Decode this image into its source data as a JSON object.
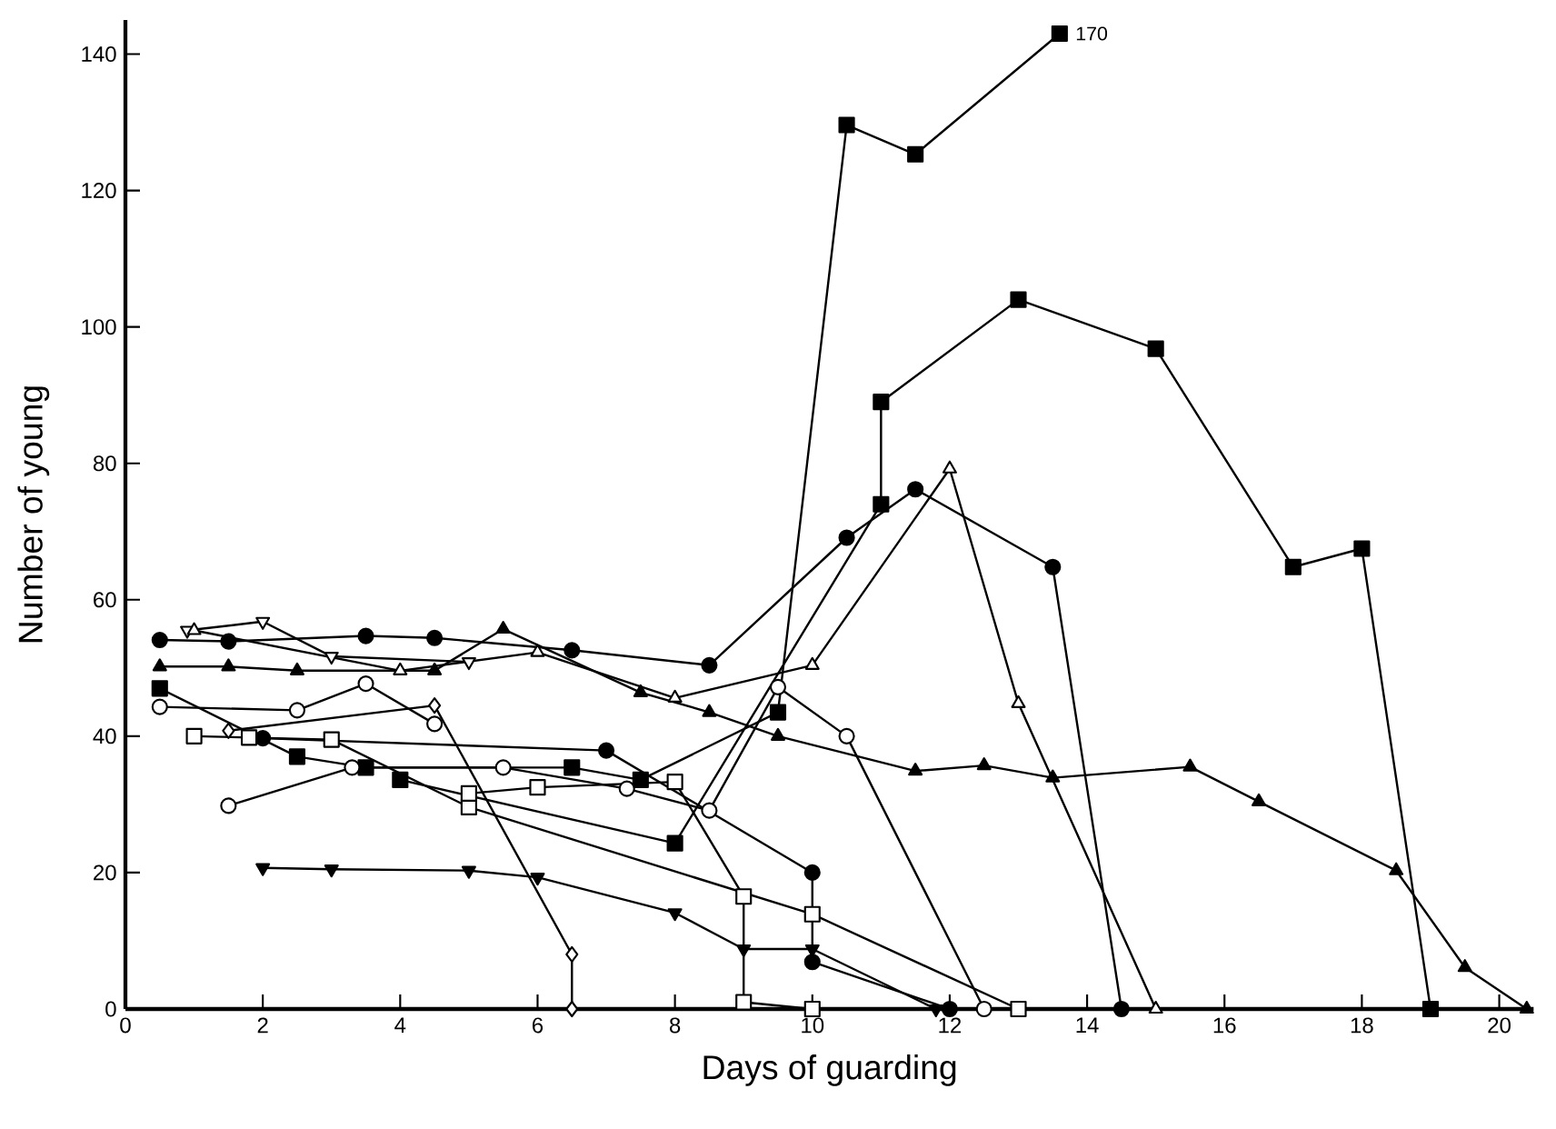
{
  "chart_data": {
    "type": "line",
    "xlabel": "Days of guarding",
    "ylabel": "Number of young",
    "xlim": [
      0,
      20.5
    ],
    "ylim": [
      0,
      145
    ],
    "xticks": [
      0,
      2,
      4,
      6,
      8,
      10,
      12,
      14,
      16,
      18,
      20
    ],
    "yticks": [
      0,
      20,
      40,
      60,
      80,
      100,
      120,
      140
    ],
    "grid": false,
    "legend": false,
    "line_style": "solid",
    "annotations": [
      {
        "text": "170",
        "x": 13.6,
        "y": 143
      }
    ],
    "series": [
      {
        "color": "#000000",
        "marker": "square",
        "x": [
          0.5,
          2.5,
          3.5,
          6.5,
          7.5,
          9.5,
          10.5,
          11.5,
          13.6
        ],
        "values": [
          47,
          37,
          35.4,
          35.4,
          33.6,
          43.5,
          129.6,
          125.3,
          143
        ]
      },
      {
        "color": "#000000",
        "marker": "square",
        "x": [
          4,
          8,
          11,
          11,
          13,
          15,
          17,
          18,
          19
        ],
        "values": [
          33.6,
          24.3,
          74,
          89,
          104,
          96.8,
          64.8,
          67.5,
          0
        ]
      },
      {
        "color": "#000000",
        "marker": "circle",
        "x": [
          0.5,
          1.5,
          3.5,
          4.5,
          6.5,
          8.5,
          10.5,
          11.5,
          13.5,
          14.5
        ],
        "values": [
          54.1,
          53.9,
          54.7,
          54.4,
          52.6,
          50.4,
          69.1,
          76.2,
          64.8,
          0
        ]
      },
      {
        "color": "#000000",
        "marker": "circle",
        "x": [
          2,
          7,
          10,
          10,
          12
        ],
        "values": [
          39.7,
          37.9,
          20,
          6.9,
          0
        ]
      },
      {
        "color": "#000000",
        "marker": "circle-open",
        "x": [
          0.5,
          2.5,
          3.5,
          4.5
        ],
        "values": [
          44.3,
          43.8,
          47.7,
          41.8
        ]
      },
      {
        "color": "#000000",
        "marker": "circle-open",
        "x": [
          1.5,
          3.3,
          5.5,
          7.3,
          8.5,
          9.5,
          10.5,
          12.5
        ],
        "values": [
          29.8,
          35.4,
          35.4,
          32.3,
          29.1,
          47.2,
          40,
          0
        ]
      },
      {
        "color": "#000000",
        "marker": "square-open",
        "x": [
          1,
          1.8,
          3,
          5,
          10,
          13
        ],
        "values": [
          40,
          39.8,
          39.5,
          29.6,
          13.9,
          0
        ]
      },
      {
        "color": "#000000",
        "marker": "square-open",
        "x": [
          5,
          6,
          8,
          9,
          9,
          10
        ],
        "values": [
          31.6,
          32.5,
          33.3,
          16.5,
          1,
          0
        ]
      },
      {
        "color": "#000000",
        "marker": "diamond-open",
        "x": [
          1.5,
          4.5,
          6.5,
          6.5
        ],
        "values": [
          40.8,
          44.5,
          8,
          0
        ]
      },
      {
        "color": "#000000",
        "marker": "triangle-down",
        "x": [
          2,
          3,
          5,
          6,
          8,
          9,
          10,
          11.8
        ],
        "values": [
          20.7,
          20.5,
          20.3,
          19.3,
          14.1,
          8.8,
          8.8,
          0
        ]
      },
      {
        "color": "#000000",
        "marker": "triangle-down-open",
        "x": [
          0.9,
          2,
          3,
          5
        ],
        "values": [
          55.5,
          56.8,
          51.7,
          50.9
        ]
      },
      {
        "color": "#000000",
        "marker": "triangle-open",
        "x": [
          1,
          4,
          6,
          8,
          10,
          12,
          13,
          15
        ],
        "values": [
          55.5,
          49.6,
          52.3,
          45.6,
          50.4,
          79.2,
          44.8,
          0
        ]
      },
      {
        "color": "#000000",
        "marker": "triangle",
        "x": [
          0.5,
          1.5,
          2.5,
          4.5,
          5.5,
          7.5,
          8.5,
          9.5,
          11.5,
          12.5,
          13.5,
          15.5,
          16.5,
          18.5,
          19.5,
          20.4
        ],
        "values": [
          50.2,
          50.2,
          49.6,
          49.6,
          55.7,
          46.4,
          43.5,
          40,
          34.9,
          35.7,
          33.9,
          35.5,
          30.4,
          20.3,
          6.1,
          0
        ]
      }
    ]
  }
}
